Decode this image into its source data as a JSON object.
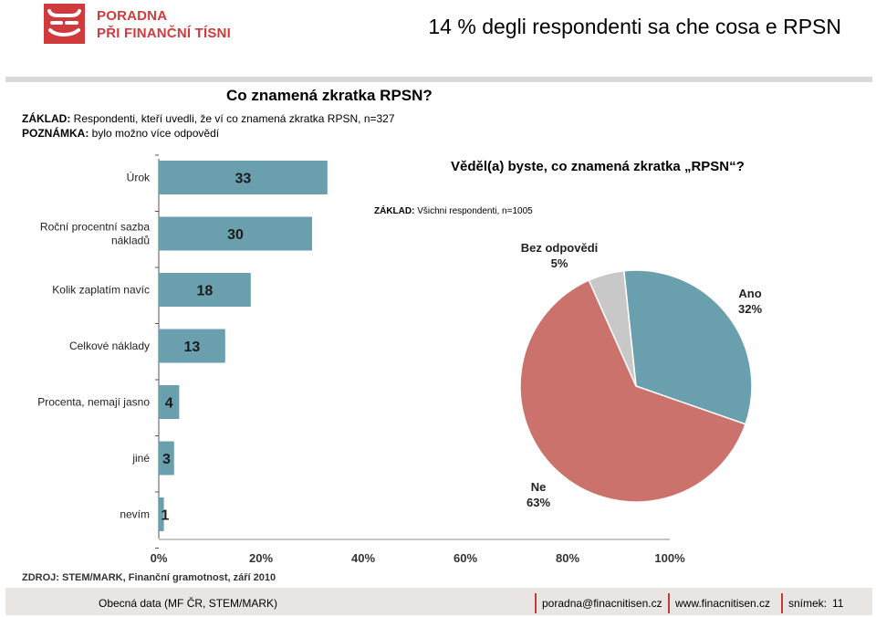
{
  "logo": {
    "line1": "PORADNA",
    "line2": "PŘI FINANČNÍ TÍSNI"
  },
  "slide_title": "14 % degli respondenti sa che cosa e RPSN",
  "chart_data": [
    {
      "type": "bar",
      "orientation": "horizontal",
      "title": "Co znamená zkratka RPSN?",
      "base_label": "ZÁKLAD:",
      "base_text": "Respondenti, kteří uvedli, že ví co znamená zkratka RPSN, n=327",
      "note_label": "POZNÁMKA:",
      "note_text": "bylo možno více odpovědí",
      "categories": [
        [
          "Úrok"
        ],
        [
          "Roční procentní sazba",
          "nákladů"
        ],
        [
          "Kolik zaplatím navíc"
        ],
        [
          "Celkové náklady"
        ],
        [
          "Procenta, nemají jasno"
        ],
        [
          "jiné"
        ],
        [
          "nevím"
        ]
      ],
      "values": [
        33,
        30,
        18,
        13,
        4,
        3,
        1
      ],
      "xlim": [
        0,
        100
      ],
      "xticks": [
        "0%",
        "20%",
        "40%",
        "60%",
        "80%",
        "100%"
      ],
      "source": "ZDROJ: STEM/MARK, Finanční gramotnost, září 2010",
      "bar_color": "#6a9fae"
    },
    {
      "type": "pie",
      "title": "Věděl(a) byste, co znamená zkratka „RPSN“?",
      "base_label": "ZÁKLAD:",
      "base_text": "Všichni respondenti, n=1005",
      "slices": [
        {
          "label": "Ano",
          "pct_text": "32%",
          "value": 32,
          "color": "#6a9fae"
        },
        {
          "label": "Ne",
          "pct_text": "63%",
          "value": 63,
          "color": "#cc726d"
        },
        {
          "label": "Bez odpovědi",
          "pct_text": "5%",
          "value": 5,
          "color": "#c8c8c8"
        }
      ]
    }
  ],
  "footer": {
    "left": "Obecná data  (MF ČR, STEM/MARK)",
    "email": "poradna@finacnitisen.cz",
    "web": "www.finacnitisen.cz",
    "slide_label": "snímek:",
    "slide_no": "11"
  }
}
